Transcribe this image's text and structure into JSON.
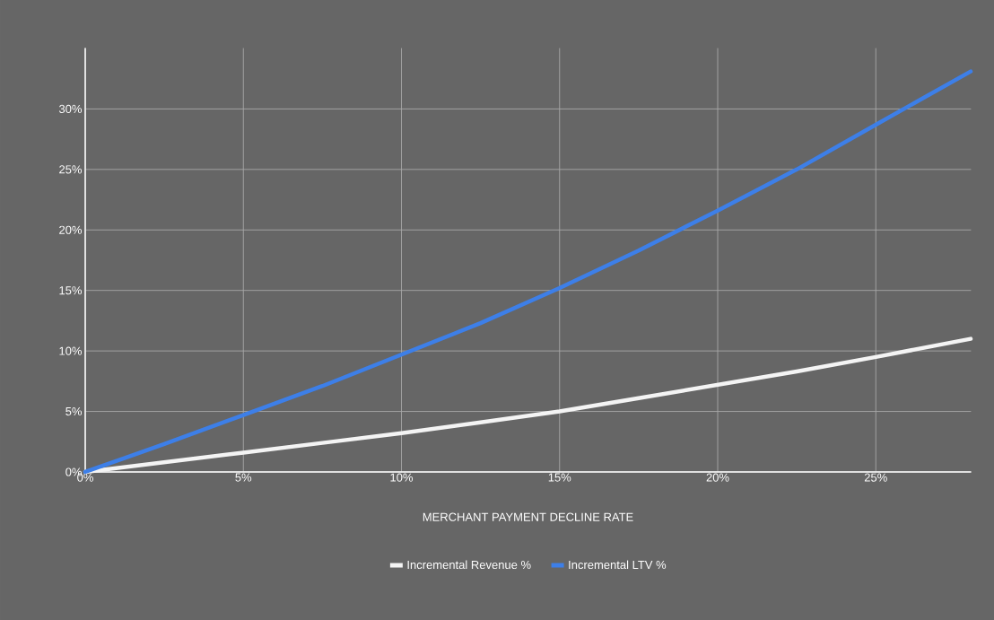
{
  "chart_data": {
    "type": "line",
    "xlabel": "MERCHANT PAYMENT DECLINE RATE",
    "x": [
      0,
      2.5,
      5,
      7.5,
      10,
      12.5,
      15,
      17.5,
      20,
      22.5,
      25,
      28
    ],
    "series": [
      {
        "name": "Incremental Revenue %",
        "color": "#f4f4f4",
        "values": [
          0,
          0.8,
          1.6,
          2.4,
          3.2,
          4.1,
          5.0,
          6.1,
          7.2,
          8.3,
          9.5,
          11.0
        ]
      },
      {
        "name": "Incremental LTV %",
        "color": "#3d7fe8",
        "values": [
          0,
          2.3,
          4.7,
          7.1,
          9.7,
          12.3,
          15.2,
          18.3,
          21.6,
          25.0,
          28.7,
          33.1
        ]
      }
    ],
    "xlim": [
      0,
      28
    ],
    "ylim": [
      0,
      35
    ],
    "xticks": [
      {
        "value": 0,
        "label": "0%"
      },
      {
        "value": 5,
        "label": "5%"
      },
      {
        "value": 10,
        "label": "10%"
      },
      {
        "value": 15,
        "label": "15%"
      },
      {
        "value": 20,
        "label": "20%"
      },
      {
        "value": 25,
        "label": "25%"
      }
    ],
    "yticks": [
      {
        "value": 0,
        "label": "0%"
      },
      {
        "value": 5,
        "label": "5%"
      },
      {
        "value": 10,
        "label": "10%"
      },
      {
        "value": 15,
        "label": "15%"
      },
      {
        "value": 20,
        "label": "20%"
      },
      {
        "value": 25,
        "label": "25%"
      },
      {
        "value": 30,
        "label": "30%"
      }
    ],
    "grid": true,
    "legend": "bottom",
    "marker": "none",
    "line_style": "solid"
  }
}
